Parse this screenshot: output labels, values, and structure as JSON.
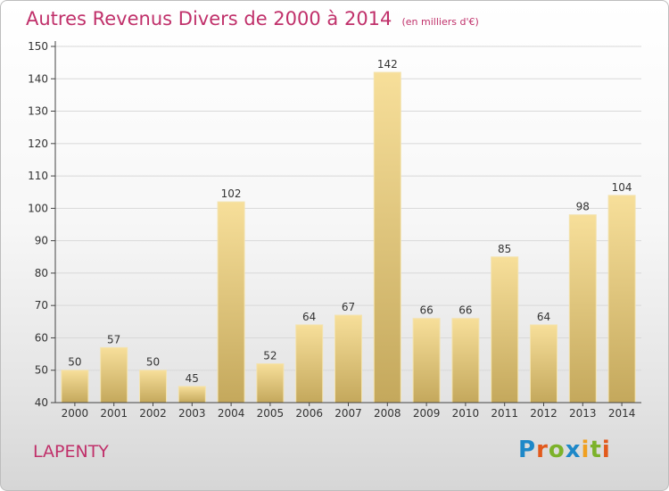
{
  "title": "Autres Revenus Divers de 2000 à 2014",
  "subtitle": "(en milliers d'€)",
  "location": "LAPENTY",
  "logo": "Proxiti",
  "colors": {
    "title": "#c0306a",
    "bar_top": "#f7df9a",
    "bar_bottom": "#c4a85c",
    "grid": "#d8d8d8"
  },
  "chart_data": {
    "type": "bar",
    "categories": [
      "2000",
      "2001",
      "2002",
      "2003",
      "2004",
      "2005",
      "2006",
      "2007",
      "2008",
      "2009",
      "2010",
      "2011",
      "2012",
      "2013",
      "2014"
    ],
    "values": [
      50,
      57,
      50,
      45,
      102,
      52,
      64,
      67,
      142,
      66,
      66,
      85,
      64,
      98,
      104
    ],
    "ylim": [
      40,
      150
    ],
    "yticks": [
      40,
      50,
      60,
      70,
      80,
      90,
      100,
      110,
      120,
      130,
      140,
      150
    ],
    "grid": true,
    "data_labels": true
  }
}
